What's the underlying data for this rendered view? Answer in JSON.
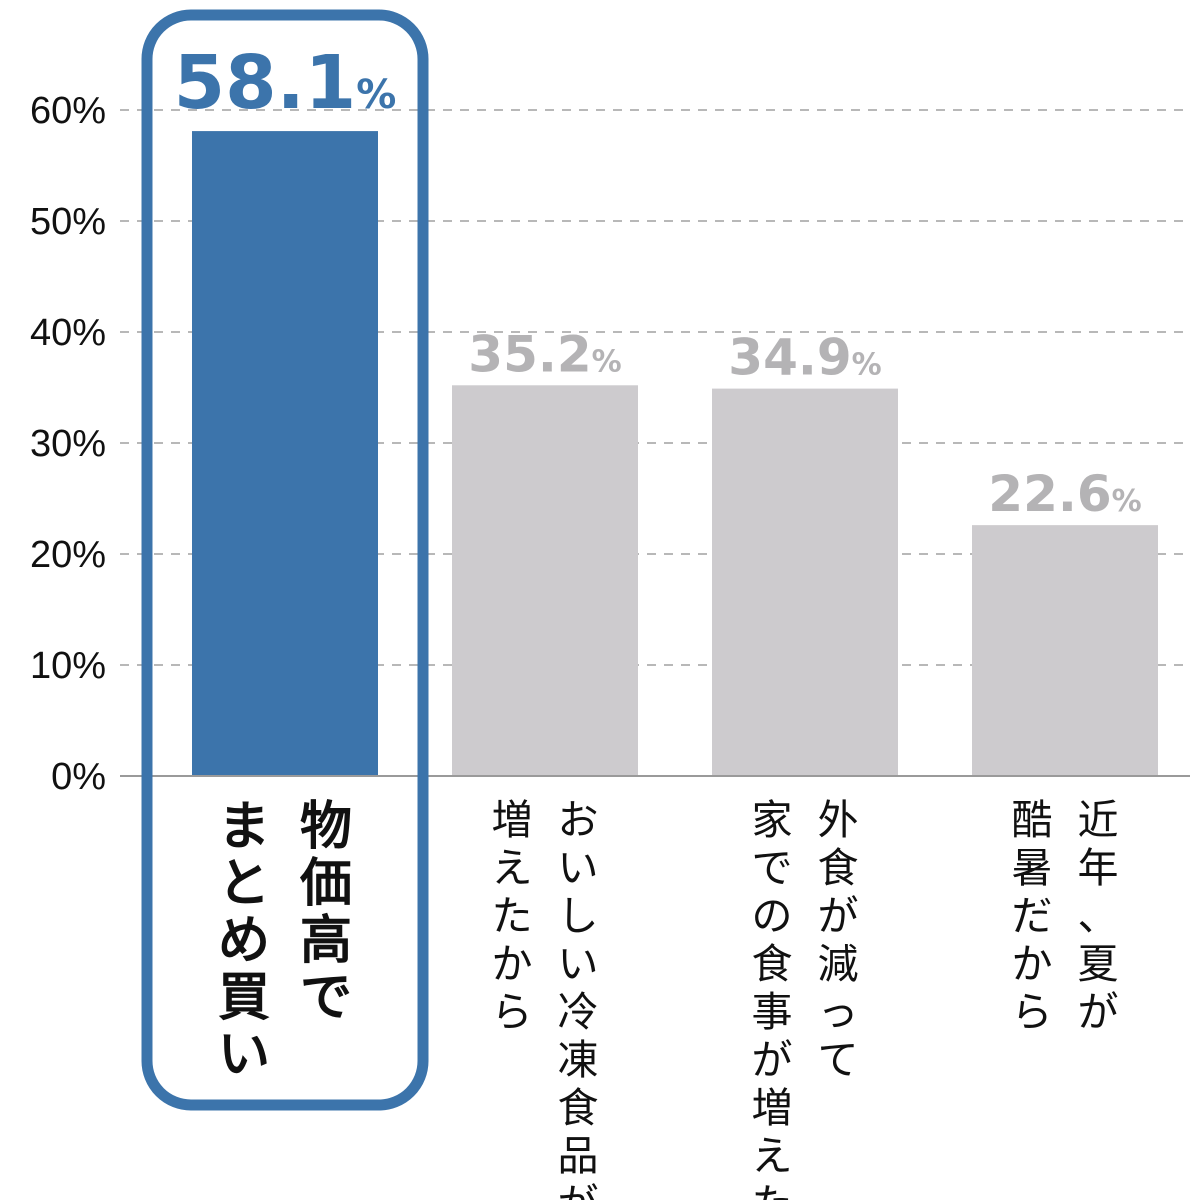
{
  "chart_data": {
    "type": "bar",
    "title": "",
    "xlabel": "",
    "ylabel": "",
    "ylim": [
      0,
      60
    ],
    "yticks": [
      0,
      10,
      20,
      30,
      40,
      50,
      60
    ],
    "ytick_labels": [
      "0%",
      "10%",
      "20%",
      "30%",
      "40%",
      "50%",
      "60%"
    ],
    "grid": true,
    "categories": [
      {
        "label_columns": [
          "物価高で",
          "まとめ買い"
        ],
        "value": 58.1,
        "value_label": "58.1",
        "unit": "%",
        "highlight": true
      },
      {
        "label_columns": [
          "おいしい冷凍食品が",
          "増えたから"
        ],
        "value": 35.2,
        "value_label": "35.2",
        "unit": "%",
        "highlight": false
      },
      {
        "label_columns": [
          "外食が減って",
          "家での食事が増えた"
        ],
        "value": 34.9,
        "value_label": "34.9",
        "unit": "%",
        "highlight": false
      },
      {
        "label_columns": [
          "近年、夏が",
          "酷暑だから"
        ],
        "value": 22.6,
        "value_label": "22.6",
        "unit": "%",
        "highlight": false
      }
    ],
    "colors": {
      "highlight_bar": "#3c74ab",
      "highlight_text": "#3c74ab",
      "bar": "#cdcbce",
      "value_text": "#b4b3b5",
      "grid": "#a0a0a0",
      "axis": "#9a9a9a"
    }
  }
}
